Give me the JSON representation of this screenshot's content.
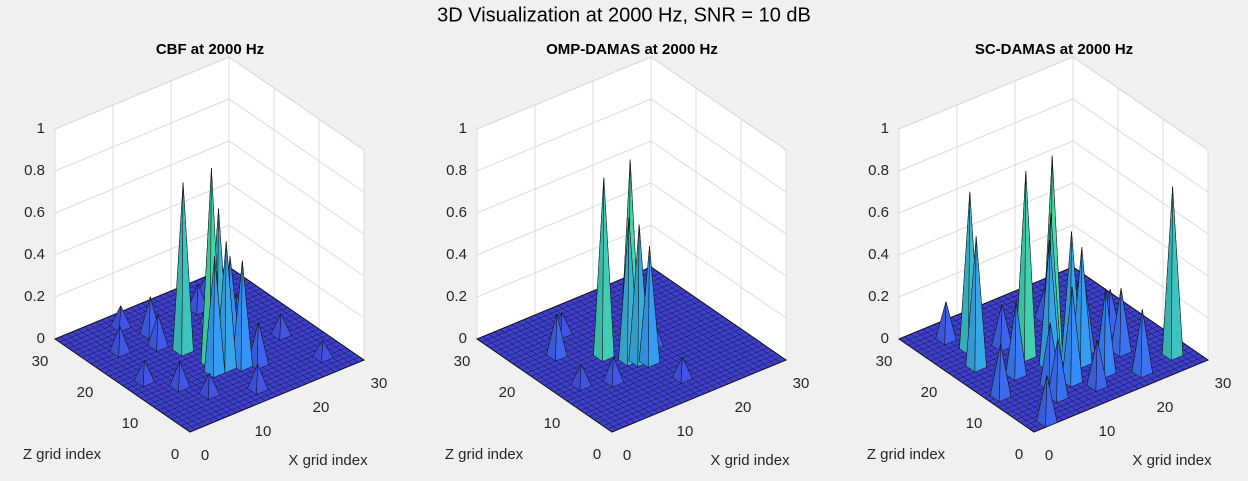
{
  "title": "3D Visualization at 2000 Hz, SNR = 10 dB",
  "chart_data": [
    {
      "type": "surface3d",
      "title": "CBF at 2000 Hz",
      "xlabel": "X grid index",
      "zlabel": "Z grid index",
      "xlim": [
        0,
        30
      ],
      "zlim": [
        0,
        30
      ],
      "ylim": [
        0,
        1
      ],
      "xticks": [
        0,
        10,
        20,
        30
      ],
      "zticks": [
        0,
        10,
        20,
        30
      ],
      "yticks": [
        0,
        0.2,
        0.4,
        0.6,
        0.8,
        1
      ],
      "grid": true,
      "colormap": [
        "#3f3dcc",
        "#2f86e6",
        "#3fd08a"
      ],
      "x": [
        13,
        12,
        14,
        16,
        17,
        12,
        15,
        10,
        18,
        5,
        8,
        22,
        25,
        20,
        3,
        9,
        26,
        14,
        19,
        6,
        23,
        11
      ],
      "z": [
        12,
        17,
        10,
        9,
        13,
        10,
        13,
        20,
        8,
        22,
        6,
        18,
        12,
        24,
        14,
        27,
        4,
        3,
        20,
        10,
        26,
        23
      ],
      "values": [
        0.93,
        0.8,
        0.6,
        0.5,
        0.45,
        0.55,
        0.7,
        0.15,
        0.2,
        0.12,
        0.1,
        0.14,
        0.1,
        0.12,
        0.1,
        0.1,
        0.08,
        0.12,
        0.15,
        0.12,
        0.1,
        0.18
      ]
    },
    {
      "type": "surface3d",
      "title": "OMP-DAMAS at 2000 Hz",
      "xlabel": "X grid index",
      "zlabel": "Z grid index",
      "xlim": [
        0,
        30
      ],
      "zlim": [
        0,
        30
      ],
      "ylim": [
        0,
        1
      ],
      "xticks": [
        0,
        10,
        20,
        30
      ],
      "zticks": [
        0,
        10,
        20,
        30
      ],
      "yticks": [
        0,
        0.2,
        0.4,
        0.6,
        0.8,
        1
      ],
      "grid": true,
      "colormap": [
        "#3f3dcc",
        "#2f86e6",
        "#3fd08a"
      ],
      "x": [
        11,
        14,
        13,
        14,
        15,
        6,
        8,
        18,
        10,
        20,
        4,
        16
      ],
      "z": [
        16,
        14,
        13,
        12,
        11,
        20,
        10,
        14,
        24,
        20,
        12,
        5
      ],
      "values": [
        0.85,
        0.93,
        0.68,
        0.65,
        0.55,
        0.2,
        0.12,
        0.12,
        0.1,
        0.1,
        0.1,
        0.1
      ]
    },
    {
      "type": "surface3d",
      "title": "SC-DAMAS at 2000 Hz",
      "xlabel": "X grid index",
      "zlabel": "Z grid index",
      "xlim": [
        0,
        30
      ],
      "zlim": [
        0,
        30
      ],
      "ylim": [
        0,
        1
      ],
      "xticks": [
        0,
        10,
        20,
        30
      ],
      "zticks": [
        0,
        10,
        20,
        30
      ],
      "yticks": [
        0,
        0.2,
        0.4,
        0.6,
        0.8,
        1
      ],
      "grid": true,
      "colormap": [
        "#3f3dcc",
        "#2f86e6",
        "#3fd08a"
      ],
      "x": [
        11,
        14,
        13,
        15,
        12,
        16,
        6,
        4,
        27,
        3,
        9,
        18,
        20,
        8,
        22,
        10,
        17,
        2,
        24,
        14,
        7,
        19,
        12,
        5,
        21
      ],
      "z": [
        16,
        14,
        13,
        11,
        12,
        10,
        22,
        18,
        4,
        1,
        8,
        12,
        16,
        5,
        9,
        20,
        6,
        10,
        14,
        4,
        13,
        22,
        7,
        26,
        3
      ],
      "values": [
        0.88,
        0.95,
        0.7,
        0.62,
        0.6,
        0.55,
        0.75,
        0.62,
        0.8,
        0.22,
        0.3,
        0.35,
        0.25,
        0.28,
        0.3,
        0.2,
        0.4,
        0.25,
        0.2,
        0.22,
        0.35,
        0.15,
        0.45,
        0.18,
        0.3
      ]
    }
  ]
}
